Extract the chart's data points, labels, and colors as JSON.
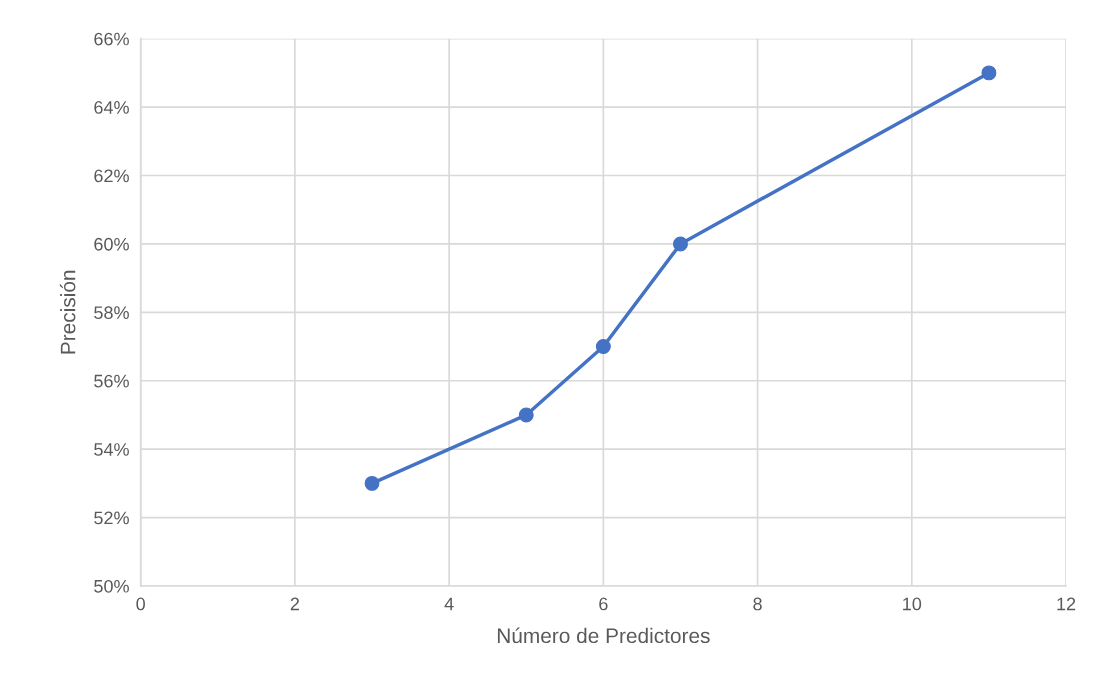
{
  "chart_data": {
    "type": "line",
    "xlabel": "Número de Predictores",
    "ylabel": "Precisión",
    "x": [
      3,
      5,
      6,
      7,
      11
    ],
    "series": [
      {
        "color": "#4472c4",
        "values": [
          53,
          55,
          57,
          60,
          65
        ]
      }
    ],
    "xlim": [
      0,
      12
    ],
    "xticks": [
      0,
      2,
      4,
      6,
      8,
      10,
      12
    ],
    "ylim": [
      50,
      66
    ],
    "yticks": [
      {
        "value": 50,
        "label": "50%"
      },
      {
        "value": 52,
        "label": "52%"
      },
      {
        "value": 54,
        "label": "54%"
      },
      {
        "value": 56,
        "label": "56%"
      },
      {
        "value": 58,
        "label": "58%"
      },
      {
        "value": 60,
        "label": "60%"
      },
      {
        "value": 62,
        "label": "62%"
      },
      {
        "value": 64,
        "label": "64%"
      },
      {
        "value": 66,
        "label": "66%"
      }
    ],
    "grid": true,
    "marker": "circle",
    "line_style": "solid"
  }
}
